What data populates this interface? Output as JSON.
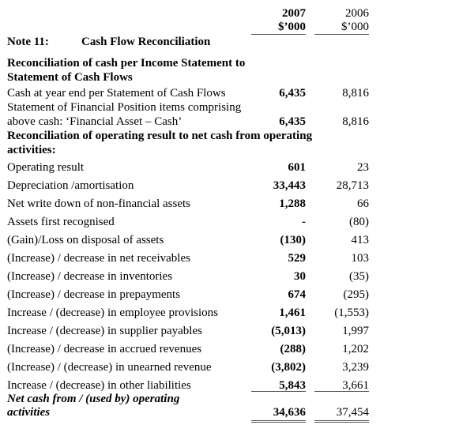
{
  "header": {
    "col2007": "2007",
    "col2006": "2006",
    "unit2007": "$’000",
    "unit2006": "$’000"
  },
  "note": {
    "number": "Note 11:",
    "title": "Cash Flow Reconciliation"
  },
  "section1": {
    "heading_line1": "Reconciliation of cash per Income Statement to",
    "heading_line2": "Statement of Cash Flows",
    "rows": [
      {
        "label": "Cash at year end per Statement of Cash Flows",
        "v2007": "6,435",
        "v2006": "8,816"
      },
      {
        "label_line1": "Statement of Financial Position items comprising",
        "label": "above cash: ‘Financial Asset – Cash’",
        "v2007": "6,435",
        "v2006": "8,816"
      }
    ]
  },
  "section2": {
    "heading_line1": "Reconciliation of operating result to net cash from operating",
    "heading_line2": "activities:",
    "rows": [
      {
        "label": "Operating result",
        "v2007": "601",
        "v2006": "23"
      },
      {
        "label": "Depreciation /amortisation",
        "v2007": "33,443",
        "v2006": "28,713"
      },
      {
        "label": "Net write down of non-financial assets",
        "v2007": "1,288",
        "v2006": "66"
      },
      {
        "label": "Assets first recognised",
        "v2007": "-",
        "v2006": "(80)"
      },
      {
        "label": "(Gain)/Loss on disposal of assets",
        "v2007": "(130)",
        "v2006": "413"
      },
      {
        "label": "(Increase) / decrease in net receivables",
        "v2007": "529",
        "v2006": "103"
      },
      {
        "label": "(Increase) / decrease in inventories",
        "v2007": "30",
        "v2006": "(35)"
      },
      {
        "label": "(Increase) / decrease in prepayments",
        "v2007": "674",
        "v2006": "(295)"
      },
      {
        "label": "Increase / (decrease) in employee provisions",
        "v2007": "1,461",
        "v2006": "(1,553)"
      },
      {
        "label": "Increase / (decrease) in supplier payables",
        "v2007": "(5,013)",
        "v2006": "1,997"
      },
      {
        "label": "(Increase) / decrease in accrued revenues",
        "v2007": "(288)",
        "v2006": "1,202"
      },
      {
        "label": "(Increase) / (decrease) in unearned revenue",
        "v2007": "(3,802)",
        "v2006": "3,239"
      },
      {
        "label": "Increase / (decrease) in other liabilities",
        "v2007": "5,843",
        "v2006": "3,661"
      }
    ]
  },
  "total": {
    "label_line1": "Net cash from / (used by) operating",
    "label_line2": "activities",
    "v2007": "34,636",
    "v2006": "37,454"
  }
}
